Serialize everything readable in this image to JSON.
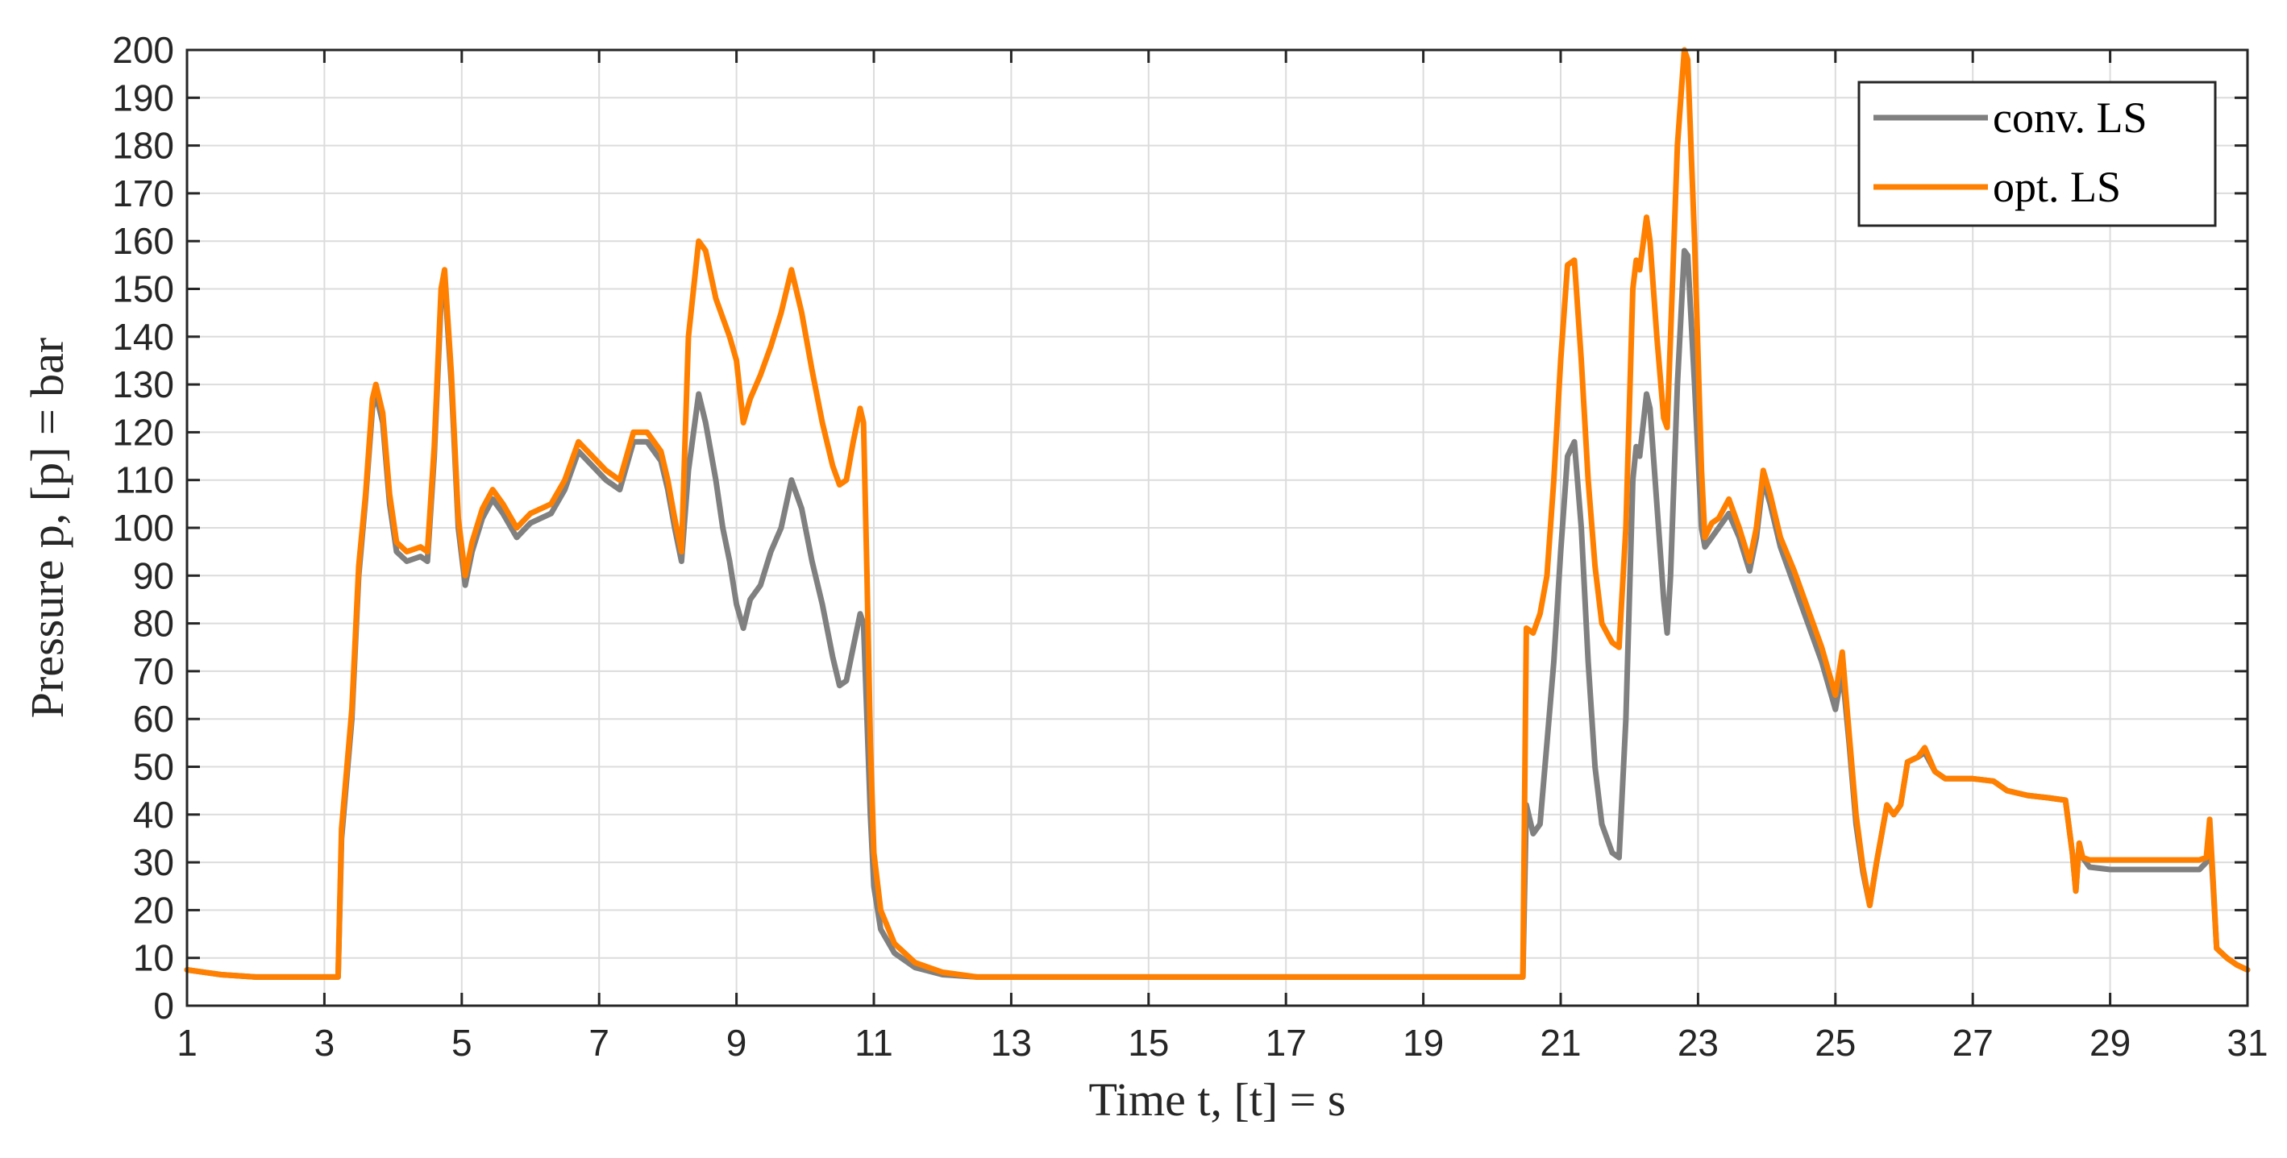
{
  "chart_data": {
    "type": "line",
    "title": "",
    "xlabel": "Time t, [t] = s",
    "ylabel": "Pressure p, [p] = bar",
    "xlim": [
      1,
      31
    ],
    "ylim": [
      0,
      200
    ],
    "x_ticks": [
      1,
      3,
      5,
      7,
      9,
      11,
      13,
      15,
      17,
      19,
      21,
      23,
      25,
      27,
      29,
      31
    ],
    "y_ticks": [
      0,
      10,
      20,
      30,
      40,
      50,
      60,
      70,
      80,
      90,
      100,
      110,
      120,
      130,
      140,
      150,
      160,
      170,
      180,
      190,
      200
    ],
    "grid": true,
    "legend_position": "top-right",
    "series": [
      {
        "name": "conv. LS",
        "color": "#808080",
        "points": [
          [
            1.0,
            7.5
          ],
          [
            1.5,
            6.5
          ],
          [
            2.0,
            6.0
          ],
          [
            3.2,
            6.0
          ],
          [
            3.25,
            35
          ],
          [
            3.4,
            60
          ],
          [
            3.5,
            90
          ],
          [
            3.6,
            106
          ],
          [
            3.7,
            125
          ],
          [
            3.75,
            128
          ],
          [
            3.85,
            122
          ],
          [
            3.95,
            105
          ],
          [
            4.05,
            95
          ],
          [
            4.2,
            93
          ],
          [
            4.4,
            94
          ],
          [
            4.5,
            93
          ],
          [
            4.6,
            115
          ],
          [
            4.7,
            148
          ],
          [
            4.75,
            152
          ],
          [
            4.85,
            130
          ],
          [
            4.95,
            100
          ],
          [
            5.05,
            88
          ],
          [
            5.15,
            95
          ],
          [
            5.3,
            102
          ],
          [
            5.45,
            106
          ],
          [
            5.6,
            103
          ],
          [
            5.8,
            98
          ],
          [
            6.0,
            101
          ],
          [
            6.3,
            103
          ],
          [
            6.5,
            108
          ],
          [
            6.7,
            116
          ],
          [
            6.9,
            113
          ],
          [
            7.1,
            110
          ],
          [
            7.3,
            108
          ],
          [
            7.5,
            118
          ],
          [
            7.7,
            118
          ],
          [
            7.9,
            114
          ],
          [
            8.0,
            108
          ],
          [
            8.1,
            100
          ],
          [
            8.2,
            93
          ],
          [
            8.3,
            112
          ],
          [
            8.45,
            128
          ],
          [
            8.55,
            122
          ],
          [
            8.7,
            110
          ],
          [
            8.8,
            100
          ],
          [
            8.9,
            93
          ],
          [
            9.0,
            84
          ],
          [
            9.1,
            79
          ],
          [
            9.2,
            85
          ],
          [
            9.35,
            88
          ],
          [
            9.5,
            95
          ],
          [
            9.65,
            100
          ],
          [
            9.8,
            110
          ],
          [
            9.95,
            104
          ],
          [
            10.1,
            93
          ],
          [
            10.25,
            84
          ],
          [
            10.4,
            73
          ],
          [
            10.5,
            67
          ],
          [
            10.6,
            68
          ],
          [
            10.7,
            75
          ],
          [
            10.8,
            82
          ],
          [
            10.85,
            80
          ],
          [
            10.9,
            60
          ],
          [
            10.95,
            40
          ],
          [
            11.0,
            25
          ],
          [
            11.1,
            16
          ],
          [
            11.3,
            11
          ],
          [
            11.6,
            8
          ],
          [
            12.0,
            6.5
          ],
          [
            12.5,
            6.0
          ],
          [
            20.45,
            6.0
          ],
          [
            20.5,
            42
          ],
          [
            20.6,
            36
          ],
          [
            20.7,
            38
          ],
          [
            20.8,
            55
          ],
          [
            20.9,
            72
          ],
          [
            21.0,
            95
          ],
          [
            21.1,
            115
          ],
          [
            21.2,
            118
          ],
          [
            21.3,
            100
          ],
          [
            21.4,
            72
          ],
          [
            21.5,
            50
          ],
          [
            21.6,
            38
          ],
          [
            21.75,
            32
          ],
          [
            21.85,
            31
          ],
          [
            21.95,
            60
          ],
          [
            22.05,
            110
          ],
          [
            22.1,
            117
          ],
          [
            22.15,
            115
          ],
          [
            22.25,
            128
          ],
          [
            22.3,
            125
          ],
          [
            22.4,
            105
          ],
          [
            22.5,
            85
          ],
          [
            22.55,
            78
          ],
          [
            22.6,
            90
          ],
          [
            22.7,
            130
          ],
          [
            22.8,
            158
          ],
          [
            22.85,
            157
          ],
          [
            22.95,
            130
          ],
          [
            23.05,
            100
          ],
          [
            23.1,
            96
          ],
          [
            23.2,
            98
          ],
          [
            23.3,
            100
          ],
          [
            23.45,
            103
          ],
          [
            23.6,
            98
          ],
          [
            23.75,
            91
          ],
          [
            23.85,
            98
          ],
          [
            23.95,
            110
          ],
          [
            24.05,
            105
          ],
          [
            24.2,
            96
          ],
          [
            24.4,
            88
          ],
          [
            24.6,
            80
          ],
          [
            24.8,
            72
          ],
          [
            25.0,
            62
          ],
          [
            25.1,
            70
          ],
          [
            25.2,
            55
          ],
          [
            25.3,
            38
          ],
          [
            25.4,
            28
          ],
          [
            25.5,
            21
          ],
          [
            25.6,
            30
          ],
          [
            25.75,
            42
          ],
          [
            25.85,
            40
          ],
          [
            25.95,
            42
          ],
          [
            26.05,
            51
          ],
          [
            26.2,
            52
          ],
          [
            26.3,
            53
          ],
          [
            26.45,
            49
          ],
          [
            26.6,
            47.5
          ],
          [
            27.0,
            47.5
          ],
          [
            27.3,
            47
          ],
          [
            27.5,
            45
          ],
          [
            27.8,
            44
          ],
          [
            28.1,
            43.5
          ],
          [
            28.35,
            43
          ],
          [
            28.45,
            32
          ],
          [
            28.5,
            24
          ],
          [
            28.55,
            34
          ],
          [
            28.6,
            31
          ],
          [
            28.7,
            29
          ],
          [
            29.0,
            28.5
          ],
          [
            29.5,
            28.5
          ],
          [
            30.0,
            28.5
          ],
          [
            30.3,
            28.5
          ],
          [
            30.4,
            30
          ],
          [
            30.45,
            37
          ],
          [
            30.5,
            25
          ],
          [
            30.55,
            12
          ],
          [
            30.7,
            10
          ],
          [
            30.85,
            8.5
          ],
          [
            31.0,
            7.5
          ]
        ]
      },
      {
        "name": "opt. LS",
        "color": "#FF8000",
        "points": [
          [
            1.0,
            7.5
          ],
          [
            1.5,
            6.5
          ],
          [
            2.0,
            6.0
          ],
          [
            3.2,
            6.0
          ],
          [
            3.25,
            37
          ],
          [
            3.4,
            62
          ],
          [
            3.5,
            92
          ],
          [
            3.6,
            107
          ],
          [
            3.7,
            127
          ],
          [
            3.75,
            130
          ],
          [
            3.85,
            124
          ],
          [
            3.95,
            107
          ],
          [
            4.05,
            97
          ],
          [
            4.2,
            95
          ],
          [
            4.4,
            96
          ],
          [
            4.5,
            95
          ],
          [
            4.6,
            117
          ],
          [
            4.7,
            150
          ],
          [
            4.75,
            154
          ],
          [
            4.85,
            132
          ],
          [
            4.95,
            102
          ],
          [
            5.05,
            90
          ],
          [
            5.15,
            97
          ],
          [
            5.3,
            104
          ],
          [
            5.45,
            108
          ],
          [
            5.6,
            105
          ],
          [
            5.8,
            100
          ],
          [
            6.0,
            103
          ],
          [
            6.3,
            105
          ],
          [
            6.5,
            110
          ],
          [
            6.7,
            118
          ],
          [
            6.9,
            115
          ],
          [
            7.1,
            112
          ],
          [
            7.3,
            110
          ],
          [
            7.5,
            120
          ],
          [
            7.7,
            120
          ],
          [
            7.9,
            116
          ],
          [
            8.0,
            110
          ],
          [
            8.1,
            102
          ],
          [
            8.2,
            95
          ],
          [
            8.3,
            140
          ],
          [
            8.45,
            160
          ],
          [
            8.55,
            158
          ],
          [
            8.7,
            148
          ],
          [
            8.9,
            140
          ],
          [
            9.0,
            135
          ],
          [
            9.1,
            122
          ],
          [
            9.2,
            127
          ],
          [
            9.35,
            132
          ],
          [
            9.5,
            138
          ],
          [
            9.65,
            145
          ],
          [
            9.8,
            154
          ],
          [
            9.95,
            145
          ],
          [
            10.1,
            133
          ],
          [
            10.25,
            122
          ],
          [
            10.4,
            113
          ],
          [
            10.5,
            109
          ],
          [
            10.6,
            110
          ],
          [
            10.7,
            118
          ],
          [
            10.8,
            125
          ],
          [
            10.85,
            122
          ],
          [
            10.9,
            90
          ],
          [
            10.95,
            55
          ],
          [
            11.0,
            32
          ],
          [
            11.1,
            20
          ],
          [
            11.3,
            13
          ],
          [
            11.6,
            9
          ],
          [
            12.0,
            7
          ],
          [
            12.5,
            6.0
          ],
          [
            20.45,
            6.0
          ],
          [
            20.5,
            79
          ],
          [
            20.6,
            78
          ],
          [
            20.7,
            82
          ],
          [
            20.8,
            90
          ],
          [
            20.9,
            110
          ],
          [
            21.0,
            135
          ],
          [
            21.1,
            155
          ],
          [
            21.2,
            156
          ],
          [
            21.3,
            135
          ],
          [
            21.4,
            110
          ],
          [
            21.5,
            92
          ],
          [
            21.6,
            80
          ],
          [
            21.75,
            76
          ],
          [
            21.85,
            75
          ],
          [
            21.95,
            100
          ],
          [
            22.05,
            150
          ],
          [
            22.1,
            156
          ],
          [
            22.15,
            154
          ],
          [
            22.25,
            165
          ],
          [
            22.3,
            160
          ],
          [
            22.4,
            140
          ],
          [
            22.5,
            123
          ],
          [
            22.55,
            121
          ],
          [
            22.6,
            140
          ],
          [
            22.7,
            180
          ],
          [
            22.8,
            200
          ],
          [
            22.85,
            198
          ],
          [
            22.95,
            160
          ],
          [
            23.05,
            112
          ],
          [
            23.1,
            98
          ],
          [
            23.2,
            101
          ],
          [
            23.3,
            102
          ],
          [
            23.45,
            106
          ],
          [
            23.6,
            100
          ],
          [
            23.75,
            93
          ],
          [
            23.85,
            100
          ],
          [
            23.95,
            112
          ],
          [
            24.05,
            107
          ],
          [
            24.2,
            98
          ],
          [
            24.4,
            91
          ],
          [
            24.6,
            83
          ],
          [
            24.8,
            75
          ],
          [
            25.0,
            65
          ],
          [
            25.1,
            74
          ],
          [
            25.2,
            57
          ],
          [
            25.3,
            40
          ],
          [
            25.4,
            29
          ],
          [
            25.5,
            21
          ],
          [
            25.6,
            30
          ],
          [
            25.75,
            42
          ],
          [
            25.85,
            40
          ],
          [
            25.95,
            42
          ],
          [
            26.05,
            51
          ],
          [
            26.2,
            52
          ],
          [
            26.3,
            54
          ],
          [
            26.45,
            49
          ],
          [
            26.6,
            47.5
          ],
          [
            27.0,
            47.5
          ],
          [
            27.3,
            47
          ],
          [
            27.5,
            45
          ],
          [
            27.8,
            44
          ],
          [
            28.1,
            43.5
          ],
          [
            28.35,
            43
          ],
          [
            28.45,
            32
          ],
          [
            28.5,
            24
          ],
          [
            28.55,
            34
          ],
          [
            28.6,
            31
          ],
          [
            28.7,
            30.5
          ],
          [
            29.0,
            30.5
          ],
          [
            29.5,
            30.5
          ],
          [
            30.0,
            30.5
          ],
          [
            30.3,
            30.5
          ],
          [
            30.4,
            31
          ],
          [
            30.45,
            39
          ],
          [
            30.5,
            26
          ],
          [
            30.55,
            12
          ],
          [
            30.7,
            10
          ],
          [
            30.85,
            8.5
          ],
          [
            31.0,
            7.5
          ]
        ]
      }
    ]
  }
}
